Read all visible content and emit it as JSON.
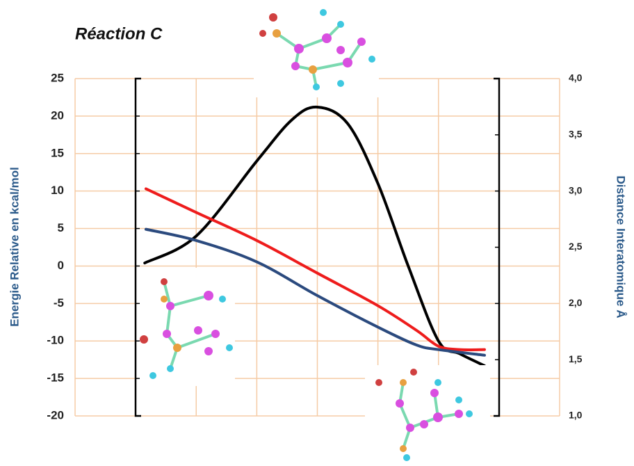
{
  "chart_data": {
    "type": "line",
    "title": "Réaction C",
    "y_label": "Energie Relative en kcal/mol",
    "y2_label": "Distance Interatomique Å",
    "xlim": [
      0,
      8
    ],
    "ylim": [
      -20,
      25
    ],
    "yticks": [
      -20,
      -15,
      -10,
      -5,
      0,
      5,
      10,
      15,
      20,
      25
    ],
    "y2lim": [
      1,
      4
    ],
    "y2ticks": [
      {
        "value": 1,
        "label": "1,0"
      },
      {
        "value": 1.5,
        "label": "1,5"
      },
      {
        "value": 2,
        "label": "2,0"
      },
      {
        "value": 2.5,
        "label": "2,5"
      },
      {
        "value": 3,
        "label": "3,0"
      },
      {
        "value": 3.5,
        "label": "3,5"
      },
      {
        "value": 4,
        "label": "4,0"
      }
    ],
    "grid": true,
    "series": [
      {
        "color": "#000000",
        "x": [
          1.15,
          2.0,
          3.0,
          3.58,
          4.0,
          4.5,
          5.0,
          5.5,
          6.0,
          6.35,
          6.76
        ],
        "values": [
          0.4,
          4,
          14,
          19.5,
          21.2,
          19,
          11,
          0,
          -10,
          -11.7,
          -13.3
        ]
      },
      {
        "color": "#ee1c1c",
        "axis": "y2",
        "x": [
          1.17,
          2.0,
          3.0,
          4.0,
          5.0,
          5.64,
          6.0,
          6.35,
          6.76
        ],
        "values": [
          3.02,
          2.81,
          2.56,
          2.27,
          1.98,
          1.76,
          1.62,
          1.59,
          1.59
        ]
      },
      {
        "color": "#2b4a7e",
        "axis": "y2",
        "x": [
          1.17,
          2.0,
          3.0,
          4.0,
          5.0,
          5.64,
          6.0,
          6.76
        ],
        "values": [
          2.66,
          2.56,
          2.37,
          2.07,
          1.79,
          1.63,
          1.59,
          1.54
        ]
      }
    ]
  }
}
